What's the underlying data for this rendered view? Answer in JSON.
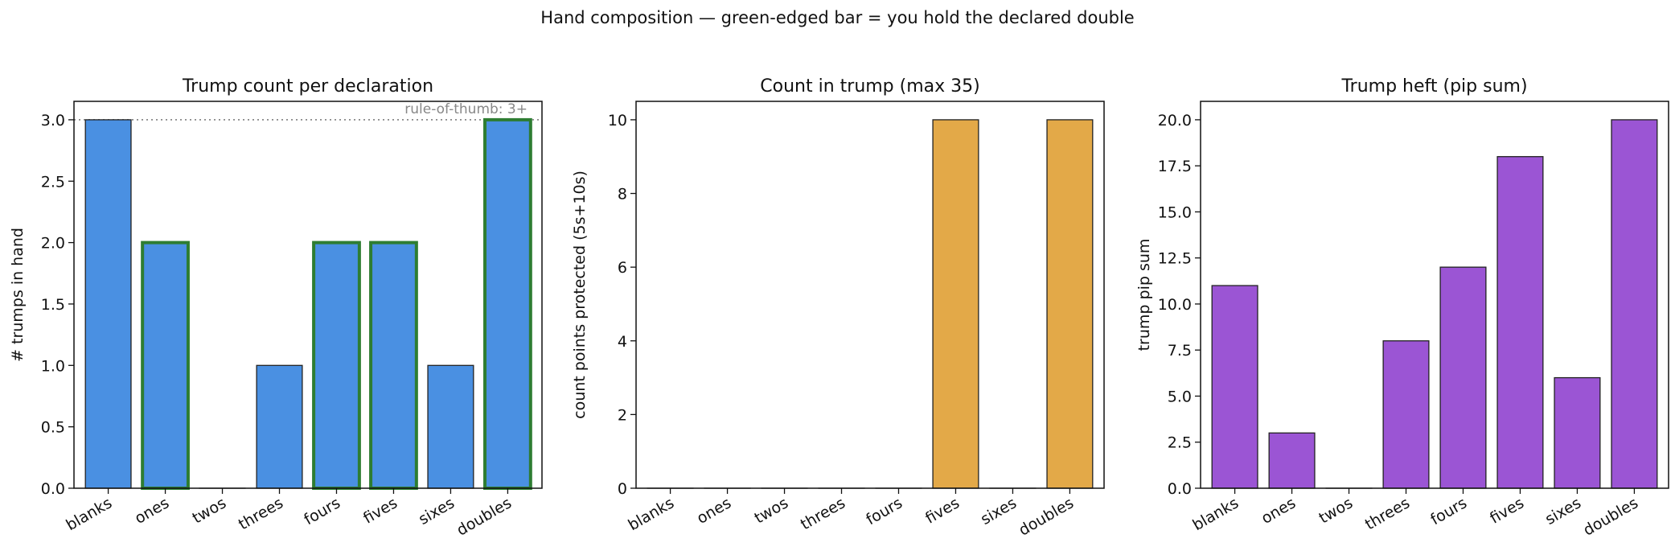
{
  "suptitle": "Hand composition — green-edged bar = you hold the declared double",
  "colors": {
    "trump_bar": "#4a90e2",
    "count_bar": "#e3a948",
    "heft_bar": "#9b55d4",
    "held_double_edge": "#2e7d32",
    "bar_edge": "#222222",
    "reference_line": "#888888"
  },
  "chart_data": [
    {
      "type": "bar",
      "title": "Trump count per declaration",
      "xlabel": "",
      "ylabel": "# trumps in hand",
      "categories": [
        "blanks",
        "ones",
        "twos",
        "threes",
        "fours",
        "fives",
        "sixes",
        "doubles"
      ],
      "values": [
        3,
        2,
        0,
        1,
        2,
        2,
        1,
        3
      ],
      "held_double": [
        false,
        true,
        false,
        false,
        true,
        true,
        false,
        true
      ],
      "ylim": [
        0,
        3.15
      ],
      "yticks": [
        0.0,
        0.5,
        1.0,
        1.5,
        2.0,
        2.5,
        3.0
      ],
      "ytick_labels": [
        "0.0",
        "0.5",
        "1.0",
        "1.5",
        "2.0",
        "2.5",
        "3.0"
      ],
      "reference_line": {
        "y": 3,
        "label": "rule-of-thumb: 3+"
      },
      "color_key": "trump_bar"
    },
    {
      "type": "bar",
      "title": "Count in trump (max 35)",
      "xlabel": "",
      "ylabel": "count points protected (5s+10s)",
      "categories": [
        "blanks",
        "ones",
        "twos",
        "threes",
        "fours",
        "fives",
        "sixes",
        "doubles"
      ],
      "values": [
        0,
        0,
        0,
        0,
        0,
        10,
        0,
        10
      ],
      "ylim": [
        0,
        10.5
      ],
      "yticks": [
        0,
        2,
        4,
        6,
        8,
        10
      ],
      "ytick_labels": [
        "0",
        "2",
        "4",
        "6",
        "8",
        "10"
      ],
      "color_key": "count_bar"
    },
    {
      "type": "bar",
      "title": "Trump heft (pip sum)",
      "xlabel": "",
      "ylabel": "trump pip sum",
      "categories": [
        "blanks",
        "ones",
        "twos",
        "threes",
        "fours",
        "fives",
        "sixes",
        "doubles"
      ],
      "values": [
        11,
        3,
        0,
        8,
        12,
        18,
        6,
        20
      ],
      "ylim": [
        0,
        21
      ],
      "yticks": [
        0.0,
        2.5,
        5.0,
        7.5,
        10.0,
        12.5,
        15.0,
        17.5,
        20.0
      ],
      "ytick_labels": [
        "0.0",
        "2.5",
        "5.0",
        "7.5",
        "10.0",
        "12.5",
        "15.0",
        "17.5",
        "20.0"
      ],
      "color_key": "heft_bar"
    }
  ]
}
